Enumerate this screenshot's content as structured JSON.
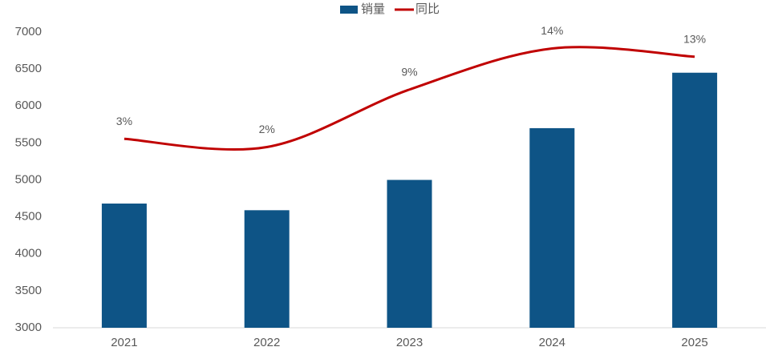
{
  "chart_data": {
    "type": "bar_line",
    "categories": [
      "2021",
      "2022",
      "2023",
      "2024",
      "2025"
    ],
    "series": [
      {
        "name": "销量",
        "type": "bar",
        "color": "#0e5486",
        "values": [
          4680,
          4590,
          5000,
          5700,
          6450
        ]
      },
      {
        "name": "同比",
        "type": "line",
        "axis": "y2",
        "color": "#c00000",
        "values": [
          3,
          2,
          9,
          14,
          13
        ],
        "value_labels": [
          "3%",
          "2%",
          "9%",
          "14%",
          "13%"
        ]
      }
    ],
    "ylim": [
      3000,
      7000
    ],
    "yticks": [
      3000,
      3500,
      4000,
      4500,
      5000,
      5500,
      6000,
      6500,
      7000
    ],
    "y2lim": [
      -20,
      16
    ],
    "grid": false,
    "legend": "top"
  }
}
